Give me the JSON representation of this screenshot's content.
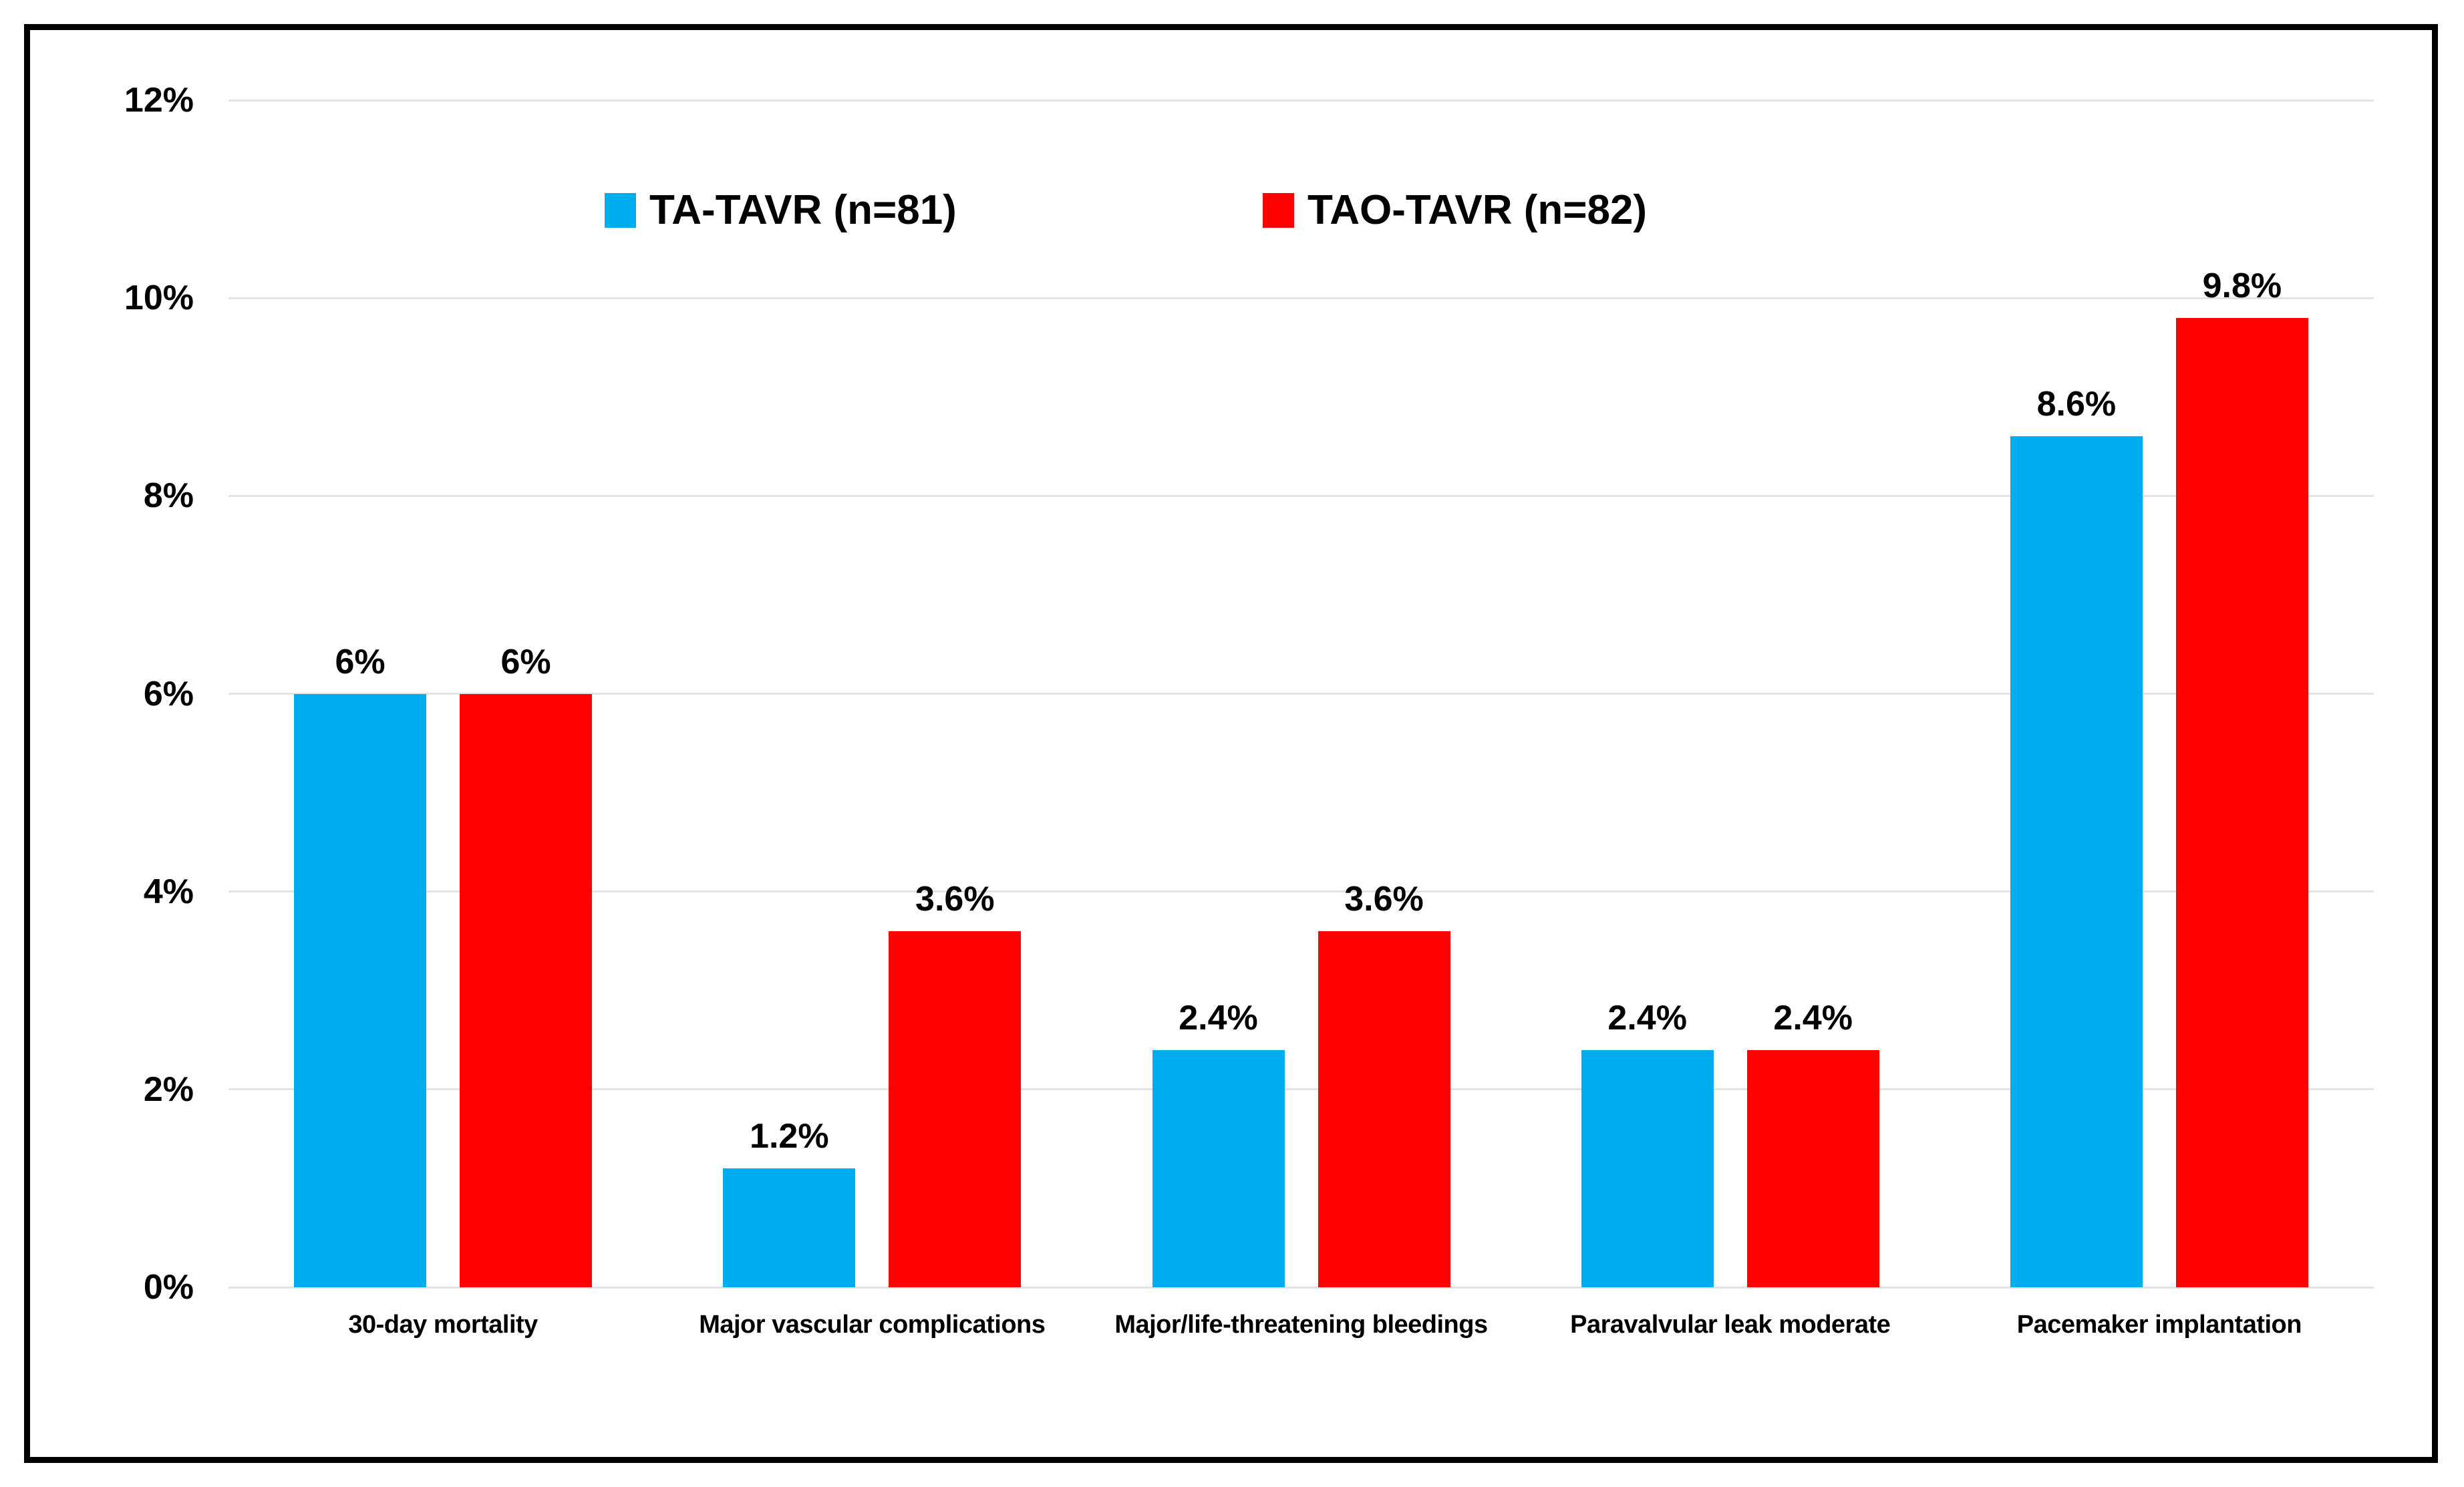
{
  "style": {
    "background": "#ffffff",
    "frame_border_color": "#000000",
    "gridline_color": "#dde3ea",
    "text_color": "#000000"
  },
  "legend": {
    "items": [
      {
        "label": "TA-TAVR (n=81)",
        "color": "#00aeef"
      },
      {
        "label": "TAO-TAVR (n=82)",
        "color": "#ff0000"
      }
    ]
  },
  "chart_data": {
    "type": "bar",
    "title": "",
    "categories": [
      "30-day mortality",
      "Major vascular complications",
      "Major/life-threatening bleedings",
      "Paravalvular leak moderate",
      "Pacemaker implantation"
    ],
    "series": [
      {
        "name": "TA-TAVR (n=81)",
        "color": "#00aeef",
        "values": [
          6,
          1.2,
          2.4,
          2.4,
          8.6
        ],
        "data_labels": [
          "6%",
          "1.2%",
          "2.4%",
          "2.4%",
          "8.6%"
        ]
      },
      {
        "name": "TAO-TAVR (n=82)",
        "color": "#ff0000",
        "values": [
          6,
          3.6,
          3.6,
          2.4,
          9.8
        ],
        "data_labels": [
          "6%",
          "3.6%",
          "3.6%",
          "2.4%",
          "9.8%"
        ]
      }
    ],
    "y_axis": {
      "min": 0,
      "max": 12,
      "tick_step": 2,
      "tick_labels": [
        "0%",
        "2%",
        "4%",
        "6%",
        "8%",
        "10%",
        "12%"
      ],
      "grid": true
    },
    "x_axis": {
      "label": ""
    },
    "legend_position": "top-center"
  }
}
